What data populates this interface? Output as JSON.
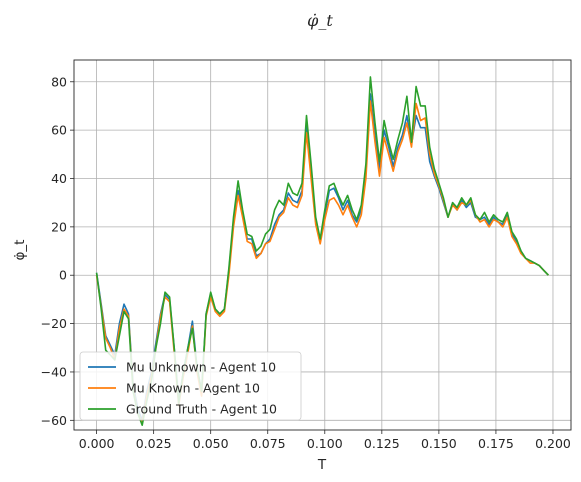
{
  "chart_data": {
    "type": "line",
    "title": "φ̇_t",
    "xlabel": "T",
    "ylabel": "φ̇_t",
    "xlim": [
      -0.0099,
      0.2079
    ],
    "ylim": [
      -64,
      89
    ],
    "xticks": [
      0.0,
      0.025,
      0.05,
      0.075,
      0.1,
      0.125,
      0.15,
      0.175,
      0.2
    ],
    "xtick_labels": [
      "0.000",
      "0.025",
      "0.050",
      "0.075",
      "0.100",
      "0.125",
      "0.150",
      "0.175",
      "0.200"
    ],
    "yticks": [
      -60,
      -40,
      -20,
      0,
      20,
      40,
      60,
      80
    ],
    "ytick_labels": [
      "−60",
      "−40",
      "−20",
      "0",
      "20",
      "40",
      "60",
      "80"
    ],
    "grid": true,
    "legend_position": "lower-left",
    "x": [
      0.0,
      0.002,
      0.004,
      0.006,
      0.008,
      0.01,
      0.012,
      0.014,
      0.016,
      0.018,
      0.02,
      0.022,
      0.024,
      0.026,
      0.028,
      0.03,
      0.032,
      0.034,
      0.036,
      0.038,
      0.04,
      0.042,
      0.044,
      0.046,
      0.048,
      0.05,
      0.052,
      0.054,
      0.056,
      0.058,
      0.06,
      0.062,
      0.064,
      0.066,
      0.068,
      0.07,
      0.072,
      0.074,
      0.076,
      0.078,
      0.08,
      0.082,
      0.084,
      0.086,
      0.088,
      0.09,
      0.092,
      0.094,
      0.096,
      0.098,
      0.1,
      0.102,
      0.104,
      0.106,
      0.108,
      0.11,
      0.112,
      0.114,
      0.116,
      0.118,
      0.12,
      0.122,
      0.124,
      0.126,
      0.128,
      0.13,
      0.132,
      0.134,
      0.136,
      0.138,
      0.14,
      0.142,
      0.144,
      0.146,
      0.148,
      0.15,
      0.152,
      0.154,
      0.156,
      0.158,
      0.16,
      0.162,
      0.164,
      0.166,
      0.168,
      0.17,
      0.172,
      0.174,
      0.176,
      0.178,
      0.18,
      0.182,
      0.184,
      0.186,
      0.188,
      0.19,
      0.192,
      0.194,
      0.196,
      0.198
    ],
    "series": [
      {
        "name": "Mu Unknown - Agent 10",
        "color": "#1f77b4",
        "values": [
          1,
          -12,
          -25,
          -29,
          -33,
          -20,
          -12,
          -16,
          -45,
          -55,
          -60,
          -48,
          -40,
          -28,
          -16,
          -8,
          -10,
          -30,
          -52,
          -40,
          -30,
          -19,
          -38,
          -48,
          -16,
          -8,
          -14,
          -16,
          -14,
          2,
          22,
          35,
          25,
          15,
          15,
          8,
          9,
          13,
          15,
          21,
          25,
          27,
          34,
          31,
          30,
          35,
          62,
          42,
          22,
          14,
          25,
          35,
          36,
          32,
          27,
          31,
          25,
          22,
          27,
          44,
          75,
          58,
          44,
          60,
          53,
          45,
          53,
          58,
          66,
          54,
          66,
          61,
          61,
          47,
          41,
          36,
          30,
          24,
          30,
          27,
          31,
          28,
          30,
          24,
          23,
          24,
          21,
          24,
          22,
          21,
          25,
          17,
          14,
          10,
          7,
          6,
          5,
          4,
          2,
          0
        ]
      },
      {
        "name": "Mu Known - Agent 10",
        "color": "#ff7f0e",
        "values": [
          0,
          -13,
          -26,
          -30,
          -35,
          -22,
          -14,
          -17,
          -47,
          -57,
          -61,
          -50,
          -42,
          -30,
          -17,
          -9,
          -11,
          -32,
          -54,
          -42,
          -32,
          -21,
          -40,
          -50,
          -17,
          -9,
          -15,
          -17,
          -15,
          0,
          20,
          33,
          24,
          14,
          13,
          7,
          9,
          13,
          14,
          19,
          24,
          26,
          32,
          29,
          28,
          33,
          59,
          40,
          21,
          13,
          23,
          31,
          32,
          29,
          25,
          29,
          24,
          20,
          25,
          40,
          72,
          55,
          41,
          57,
          50,
          43,
          51,
          56,
          63,
          53,
          71,
          64,
          65,
          50,
          42,
          37,
          31,
          24,
          29,
          27,
          30,
          29,
          31,
          25,
          22,
          23,
          20,
          23,
          22,
          20,
          24,
          16,
          13,
          9,
          7,
          5,
          5,
          4,
          2,
          0
        ]
      },
      {
        "name": "Ground Truth - Agent 10",
        "color": "#2ca02c",
        "values": [
          1,
          -14,
          -31,
          -33,
          -35,
          -25,
          -15,
          -18,
          -48,
          -57,
          -62,
          -52,
          -44,
          -30,
          -20,
          -7,
          -9,
          -30,
          -53,
          -40,
          -30,
          -22,
          -38,
          -48,
          -16,
          -7,
          -14,
          -16,
          -14,
          3,
          24,
          39,
          27,
          17,
          16,
          10,
          12,
          17,
          19,
          27,
          31,
          29,
          38,
          34,
          33,
          38,
          66,
          46,
          24,
          15,
          27,
          37,
          38,
          33,
          29,
          33,
          27,
          23,
          29,
          46,
          82,
          63,
          47,
          64,
          55,
          48,
          56,
          63,
          74,
          55,
          78,
          70,
          70,
          53,
          44,
          38,
          32,
          24,
          30,
          28,
          32,
          29,
          32,
          25,
          23,
          26,
          22,
          25,
          23,
          22,
          26,
          18,
          15,
          10,
          7,
          6,
          5,
          4,
          2,
          0
        ]
      }
    ]
  }
}
